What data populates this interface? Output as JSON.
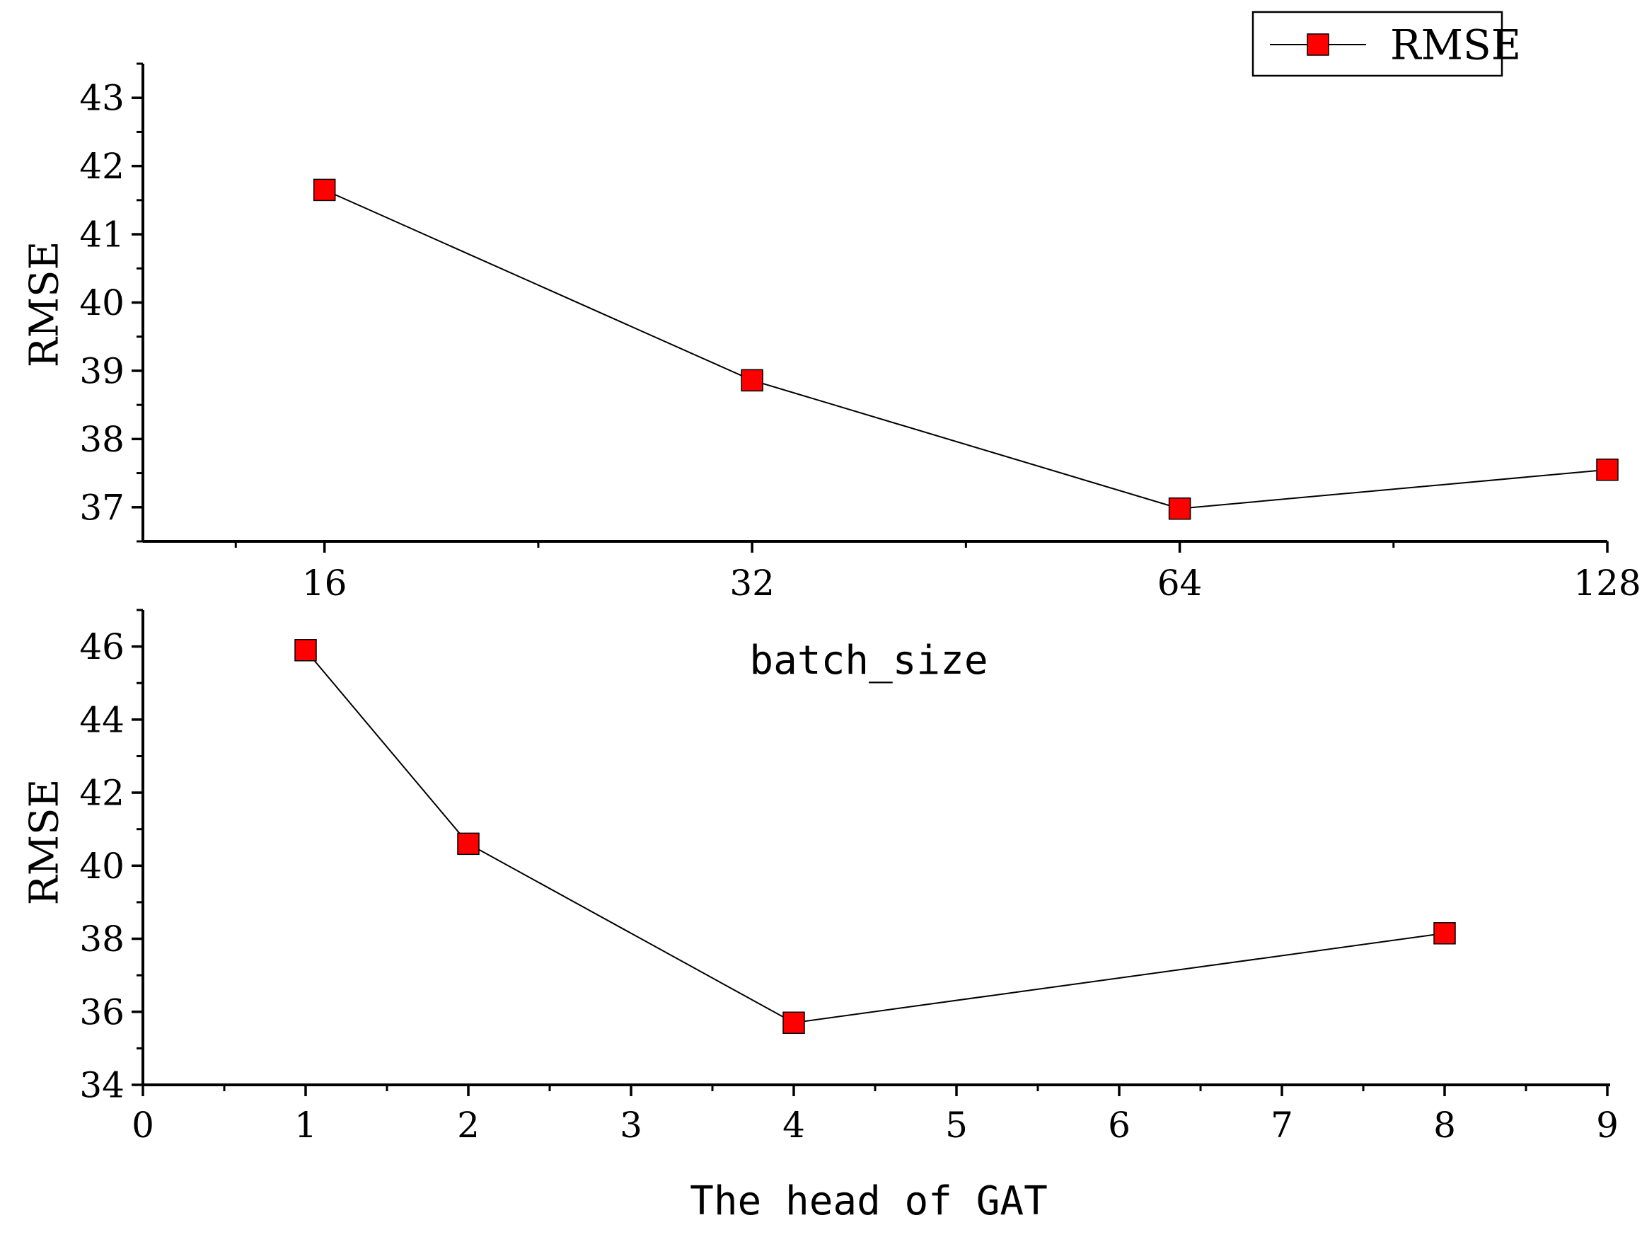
{
  "chart_data": [
    {
      "type": "line",
      "xlabel": "batch_size",
      "ylabel": "RMSE",
      "x": [
        16,
        32,
        64,
        128
      ],
      "x_tick_labels": [
        "16",
        "32",
        "64",
        "128"
      ],
      "x_scale": "log2",
      "ylim": [
        36.5,
        43.5
      ],
      "y_ticks": [
        37,
        38,
        39,
        40,
        41,
        42,
        43
      ],
      "grid": false,
      "legend": {
        "position": "top-right",
        "entries": [
          "RMSE"
        ]
      },
      "series": [
        {
          "name": "RMSE",
          "values": [
            41.65,
            38.86,
            36.98,
            37.55
          ],
          "color": "#000000",
          "marker_color": "#ff0000"
        }
      ]
    },
    {
      "type": "line",
      "xlabel": "The head of GAT",
      "ylabel": "RMSE",
      "x": [
        1,
        2,
        4,
        8
      ],
      "xlim": [
        0,
        9
      ],
      "x_ticks": [
        0,
        1,
        2,
        3,
        4,
        5,
        6,
        7,
        8,
        9
      ],
      "ylim": [
        34,
        47
      ],
      "y_ticks": [
        34,
        36,
        38,
        40,
        42,
        44,
        46
      ],
      "grid": false,
      "series": [
        {
          "name": "RMSE",
          "values": [
            45.9,
            40.6,
            35.7,
            38.15
          ],
          "color": "#000000",
          "marker_color": "#ff0000"
        }
      ]
    }
  ]
}
